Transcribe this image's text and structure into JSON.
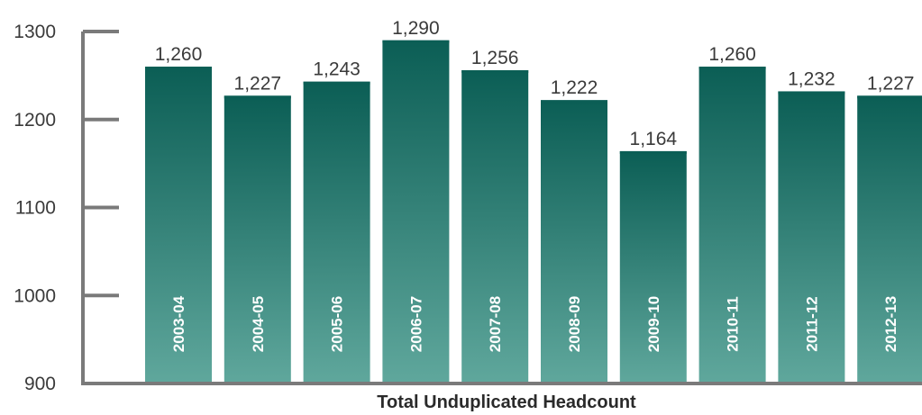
{
  "chart_data": {
    "type": "bar",
    "title": "",
    "xlabel": "Total Unduplicated Headcount",
    "ylabel": "",
    "ylim": [
      900,
      1300
    ],
    "yticks": [
      900,
      1000,
      1100,
      1200,
      1300
    ],
    "grid": false,
    "legend": "none",
    "categories": [
      "2003-04",
      "2004-05",
      "2005-06",
      "2006-07",
      "2007-08",
      "2008-09",
      "2009-10",
      "2010-11",
      "2011-12",
      "2012-13"
    ],
    "values": [
      1260,
      1227,
      1243,
      1290,
      1256,
      1222,
      1164,
      1260,
      1232,
      1227
    ],
    "data_labels": [
      "1,260",
      "1,227",
      "1,243",
      "1,290",
      "1,256",
      "1,222",
      "1,164",
      "1,260",
      "1,232",
      "1,227"
    ],
    "colors": {
      "bar_top": "#0b5e55",
      "bar_bottom": "#5fa79c",
      "axis": "#7a7a7a",
      "text": "#3a3a3a"
    }
  }
}
